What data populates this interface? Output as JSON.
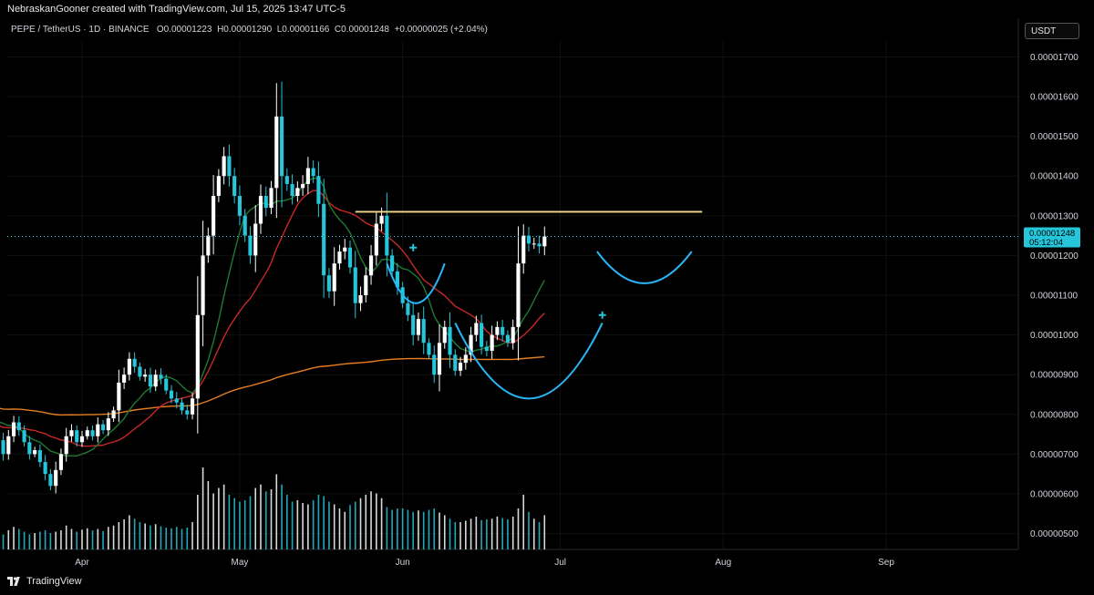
{
  "header": {
    "attribution": "NebraskanGooner created with TradingView.com, Jul 15, 2025 13:47 UTC-5",
    "symbol_line": "PEPE / TetherUS · 1D · BINANCE",
    "ohlc": {
      "o_label": "O",
      "o": "0.00001223",
      "h_label": "H",
      "h": "0.00001290",
      "l_label": "L",
      "l": "0.00001166",
      "c_label": "C",
      "c": "0.00001248",
      "change": "+0.00000025 (+2.04%)"
    },
    "currency": "USDT"
  },
  "brand": {
    "name": "TradingView"
  },
  "price_marker": {
    "price": "0.00001248",
    "countdown": "05:12:04",
    "color": "#26c6da"
  },
  "colors": {
    "up": "#ffffff",
    "down": "#26c6da",
    "ma_fast": "#1e7a32",
    "ma_mid": "#c62828",
    "ma_slow": "#e67e22",
    "resistance": "#f5d98b",
    "pattern": "#29b6f6",
    "grid": "#111111",
    "axis_text": "#d1d4dc"
  },
  "chart_data": {
    "type": "candlestick",
    "symbol": "PEPE / TetherUS",
    "interval": "1D",
    "exchange": "BINANCE",
    "y_axis": {
      "ticks": [
        "0.00001700",
        "0.00001600",
        "0.00001500",
        "0.00001400",
        "0.00001300",
        "0.00001200",
        "0.00001100",
        "0.00001000",
        "0.00000900",
        "0.00000800",
        "0.00000700",
        "0.00000600",
        "0.00000500"
      ],
      "range": [
        4.6e-06,
        1.74e-05
      ]
    },
    "x_axis": {
      "labels": [
        {
          "label": "Apr",
          "date": "2025-04-01"
        },
        {
          "label": "May",
          "date": "2025-05-01"
        },
        {
          "label": "Jun",
          "date": "2025-06-01"
        },
        {
          "label": "Jul",
          "date": "2025-07-01"
        },
        {
          "label": "Aug",
          "date": "2025-08-01"
        },
        {
          "label": "Sep",
          "date": "2025-09-01"
        }
      ]
    },
    "start_date": "2025-03-03",
    "closes": [
      7.45e-06,
      7.7e-06,
      7.2e-06,
      7.6e-06,
      7.4e-06,
      8e-06,
      7.8e-06,
      8.3e-06,
      8.6e-06,
      8.1e-06,
      7.7e-06,
      7.3e-06,
      7.6e-06,
      7.35e-06,
      7e-06,
      7.45e-06,
      7.8e-06,
      7.6e-06,
      7.3e-06,
      7e-06,
      7.1e-06,
      6.8e-06,
      6.5e-06,
      6.2e-06,
      6.6e-06,
      7e-06,
      7.45e-06,
      7.6e-06,
      7.3e-06,
      7.45e-06,
      7.6e-06,
      7.45e-06,
      7.75e-06,
      7.6e-06,
      7.9e-06,
      8.1e-06,
      8.8e-06,
      9e-06,
      9.4e-06,
      9.2e-06,
      8.95e-06,
      9e-06,
      8.7e-06,
      9e-06,
      8.9e-06,
      8.6e-06,
      8.4e-06,
      8.3e-06,
      8.1e-06,
      8e-06,
      8.4e-06,
      1.05e-05,
      1.2e-05,
      1.25e-05,
      1.35e-05,
      1.4e-05,
      1.45e-05,
      1.4e-05,
      1.35e-05,
      1.3e-05,
      1.25e-05,
      1.2e-05,
      1.28e-05,
      1.35e-05,
      1.32e-05,
      1.37e-05,
      1.55e-05,
      1.4e-05,
      1.38e-05,
      1.35e-05,
      1.37e-05,
      1.38e-05,
      1.42e-05,
      1.4e-05,
      1.33e-05,
      1.15e-05,
      1.11e-05,
      1.18e-05,
      1.21e-05,
      1.22e-05,
      1.17e-05,
      1.08e-05,
      1.1e-05,
      1.15e-05,
      1.2e-05,
      1.28e-05,
      1.3e-05,
      1.2e-05,
      1.16e-05,
      1.12e-05,
      1.08e-05,
      1.05e-05,
      1e-05,
      1.04e-05,
      9.8e-06,
      9.5e-06,
      9e-06,
      9.8e-06,
      1.02e-05,
      9.5e-06,
      9.1e-06,
      9.3e-06,
      9.5e-06,
      1e-05,
      1.03e-05,
      9.7e-06,
      9.6e-06,
      1e-05,
      1.02e-05,
      1e-05,
      9.8e-06,
      1.02e-05,
      1.18e-05,
      1.25e-05,
      1.23e-05,
      1.23e-05,
      1.223e-05,
      1.248e-05
    ],
    "volumes": [
      37,
      30,
      34,
      28,
      33,
      45,
      39,
      41,
      50,
      42,
      30,
      27,
      31,
      26,
      22,
      28,
      33,
      30,
      26,
      22,
      24,
      26,
      28,
      24,
      26,
      28,
      35,
      30,
      26,
      29,
      31,
      28,
      30,
      27,
      33,
      35,
      40,
      44,
      50,
      45,
      40,
      38,
      35,
      37,
      34,
      32,
      31,
      33,
      30,
      32,
      40,
      80,
      120,
      100,
      82,
      90,
      95,
      80,
      75,
      70,
      72,
      78,
      90,
      95,
      85,
      88,
      110,
      95,
      80,
      70,
      72,
      68,
      66,
      72,
      80,
      78,
      70,
      66,
      60,
      55,
      65,
      70,
      75,
      80,
      85,
      82,
      75,
      62,
      58,
      60,
      60,
      58,
      55,
      57,
      55,
      58,
      60,
      54,
      50,
      45,
      40,
      40,
      42,
      45,
      48,
      43,
      44,
      45,
      48,
      46,
      44,
      48,
      60,
      80,
      55,
      45,
      40,
      50
    ],
    "moving_averages": [
      {
        "period": 10,
        "color": "#1e7a32"
      },
      {
        "period": 20,
        "color": "#c62828"
      },
      {
        "period": 200,
        "color": "#e67e22"
      }
    ],
    "resistance": {
      "price": 1.31e-05,
      "from": "2025-05-23",
      "to": "2025-07-28"
    },
    "pattern_arcs": [
      {
        "from_date": "2025-05-29",
        "to_date": "2025-06-09",
        "top_price": 1.18e-05,
        "bottom_price": 1.08e-05
      },
      {
        "from_date": "2025-06-11",
        "to_date": "2025-07-09",
        "top_price": 1.03e-05,
        "bottom_price": 8.4e-06
      },
      {
        "from_date": "2025-07-08",
        "to_date": "2025-07-26",
        "top_price": 1.21e-05,
        "bottom_price": 1.13e-05
      }
    ],
    "crosshair_markers": [
      {
        "date": "2025-03-08",
        "price": 7.6e-06
      },
      {
        "date": "2025-03-11",
        "price": 7.7e-06
      },
      {
        "date": "2025-06-03",
        "price": 1.22e-05
      },
      {
        "date": "2025-07-09",
        "price": 1.05e-05
      }
    ]
  }
}
